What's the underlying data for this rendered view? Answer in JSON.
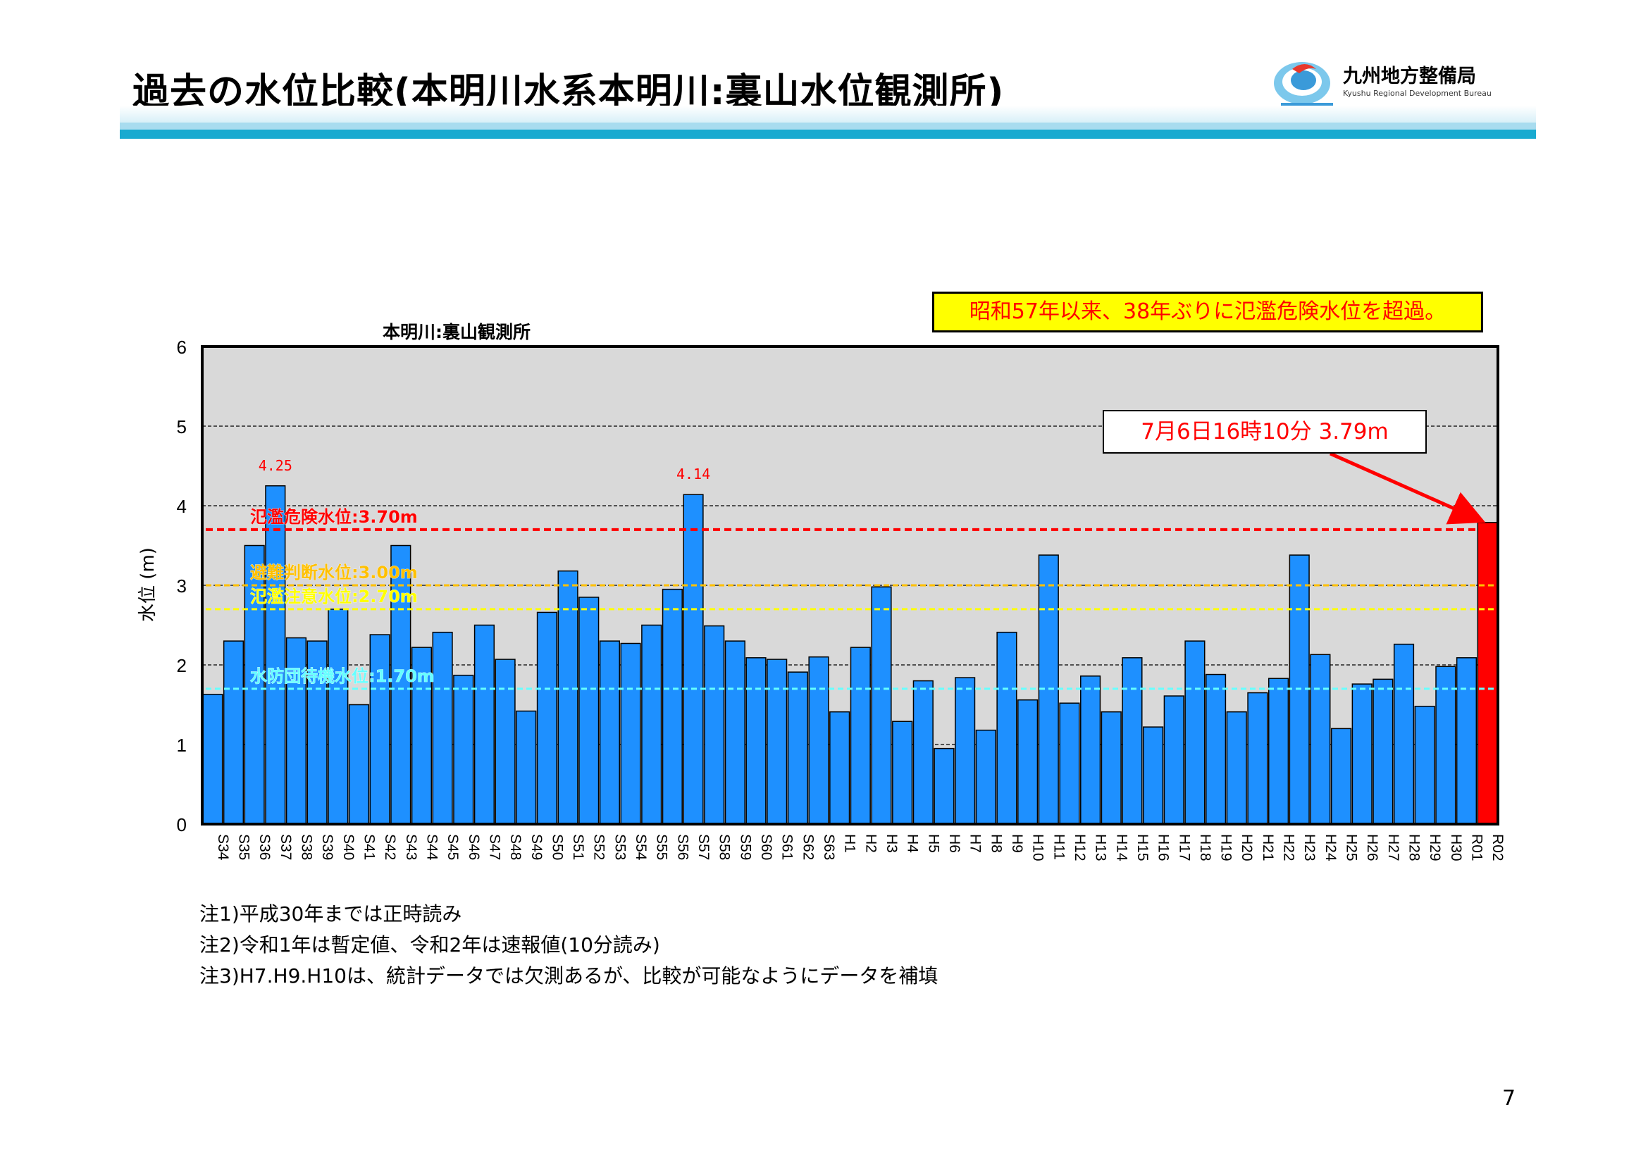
{
  "page": {
    "title": "過去の水位比較(本明川水系本明川:裏山水位観測所)",
    "page_number": "7",
    "colors": {
      "accent_band": "#19aad0",
      "bar": "#1e90ff",
      "bar_highlight": "#ff0000"
    }
  },
  "logo": {
    "name": "九州地方整備局",
    "subtitle": "Kyushu Regional Development Bureau",
    "icon": "kyushu-bureau-logo-icon"
  },
  "callouts": {
    "main": "昭和57年以来、38年ぶりに氾濫危険水位を超過。",
    "peak": "7月6日16時10分 3.79m"
  },
  "notes": [
    "注1)平成30年までは正時読み",
    "注2)令和1年は暫定値、令和2年は速報値(10分読み)",
    "注3)H7.H9.H10は、統計データでは欠測あるが、比較が可能なようにデータを補填"
  ],
  "chart_data": {
    "type": "bar",
    "title": "本明川:裏山観測所",
    "ylabel": "水位 (m)",
    "xlabel": "",
    "ylim": [
      0,
      6
    ],
    "yticks": [
      "0",
      "1",
      "2",
      "3",
      "4",
      "5",
      "6"
    ],
    "grid": true,
    "categories": [
      "S34",
      "S35",
      "S36",
      "S37",
      "S38",
      "S39",
      "S40",
      "S41",
      "S42",
      "S43",
      "S44",
      "S45",
      "S46",
      "S47",
      "S48",
      "S49",
      "S50",
      "S51",
      "S52",
      "S53",
      "S54",
      "S55",
      "S56",
      "S57",
      "S58",
      "S59",
      "S60",
      "S61",
      "S62",
      "S63",
      "H1",
      "H2",
      "H3",
      "H4",
      "H5",
      "H6",
      "H7",
      "H8",
      "H9",
      "H10",
      "H11",
      "H12",
      "H13",
      "H14",
      "H15",
      "H16",
      "H17",
      "H18",
      "H19",
      "H20",
      "H21",
      "H22",
      "H23",
      "H24",
      "H25",
      "H26",
      "H27",
      "H28",
      "H29",
      "H30",
      "R01",
      "R02"
    ],
    "values": [
      1.63,
      2.3,
      3.5,
      4.25,
      2.34,
      2.3,
      2.7,
      1.5,
      2.38,
      3.5,
      2.22,
      2.41,
      1.87,
      2.5,
      2.07,
      1.42,
      2.66,
      3.18,
      2.85,
      2.3,
      2.27,
      2.5,
      2.95,
      4.14,
      2.49,
      2.3,
      2.09,
      2.07,
      1.91,
      2.1,
      1.41,
      2.22,
      2.98,
      1.29,
      1.8,
      0.95,
      1.84,
      1.18,
      2.41,
      1.56,
      3.38,
      1.52,
      1.86,
      1.41,
      2.09,
      1.22,
      1.61,
      2.3,
      1.88,
      1.41,
      1.65,
      1.83,
      3.38,
      2.13,
      1.2,
      1.76,
      1.82,
      2.26,
      1.48,
      1.98,
      2.09,
      3.79
    ],
    "highlight_index": 61,
    "data_labels": [
      {
        "index": 3,
        "text": "4.25"
      },
      {
        "index": 23,
        "text": "4.14"
      }
    ],
    "thresholds": [
      {
        "label": "氾濫危険水位:3.70m",
        "value": 3.7,
        "color": "#ff0000"
      },
      {
        "label": "避難判断水位:3.00m",
        "value": 3.0,
        "color": "#ffc000"
      },
      {
        "label": "氾濫注意水位:2.70m",
        "value": 2.7,
        "color": "#ffff00"
      },
      {
        "label": "水防団待機水位:1.70m",
        "value": 1.7,
        "color": "#66ffff"
      }
    ]
  }
}
